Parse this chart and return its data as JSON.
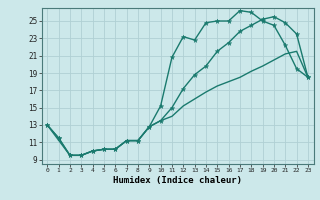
{
  "title": "",
  "xlabel": "Humidex (Indice chaleur)",
  "bg_color": "#cce8ea",
  "grid_color": "#b0d0d4",
  "line_color": "#1a7a6e",
  "xlim": [
    -0.5,
    23.5
  ],
  "ylim": [
    8.5,
    26.5
  ],
  "yticks": [
    9,
    11,
    13,
    15,
    17,
    19,
    21,
    23,
    25
  ],
  "xticks": [
    0,
    1,
    2,
    3,
    4,
    5,
    6,
    7,
    8,
    9,
    10,
    11,
    12,
    13,
    14,
    15,
    16,
    17,
    18,
    19,
    20,
    21,
    22,
    23
  ],
  "line1_x": [
    0,
    1,
    2,
    3,
    4,
    5,
    6,
    7,
    8,
    9,
    10,
    11,
    12,
    13,
    14,
    15,
    16,
    17,
    18,
    19,
    20,
    21,
    22,
    23
  ],
  "line1_y": [
    13.0,
    11.5,
    9.5,
    9.5,
    10.0,
    10.2,
    10.2,
    11.2,
    11.2,
    12.8,
    15.2,
    20.8,
    23.2,
    22.8,
    24.8,
    25.0,
    25.0,
    26.2,
    26.0,
    25.0,
    24.5,
    22.2,
    19.5,
    18.5
  ],
  "line2_x": [
    0,
    1,
    2,
    3,
    4,
    5,
    6,
    7,
    8,
    9,
    10,
    11,
    12,
    13,
    14,
    15,
    16,
    17,
    18,
    19,
    20,
    21,
    22,
    23
  ],
  "line2_y": [
    13.0,
    11.5,
    9.5,
    9.5,
    10.0,
    10.2,
    10.2,
    11.2,
    11.2,
    12.8,
    13.5,
    15.0,
    17.2,
    18.8,
    19.8,
    21.5,
    22.5,
    23.8,
    24.5,
    25.2,
    25.5,
    24.8,
    23.5,
    18.5
  ],
  "line3_x": [
    0,
    2,
    3,
    4,
    5,
    6,
    7,
    8,
    9,
    10,
    11,
    12,
    13,
    14,
    15,
    16,
    17,
    18,
    19,
    20,
    21,
    22,
    23
  ],
  "line3_y": [
    13.0,
    9.5,
    9.5,
    10.0,
    10.2,
    10.2,
    11.2,
    11.2,
    12.8,
    13.5,
    14.0,
    15.2,
    16.0,
    16.8,
    17.5,
    18.0,
    18.5,
    19.2,
    19.8,
    20.5,
    21.2,
    21.5,
    18.5
  ]
}
